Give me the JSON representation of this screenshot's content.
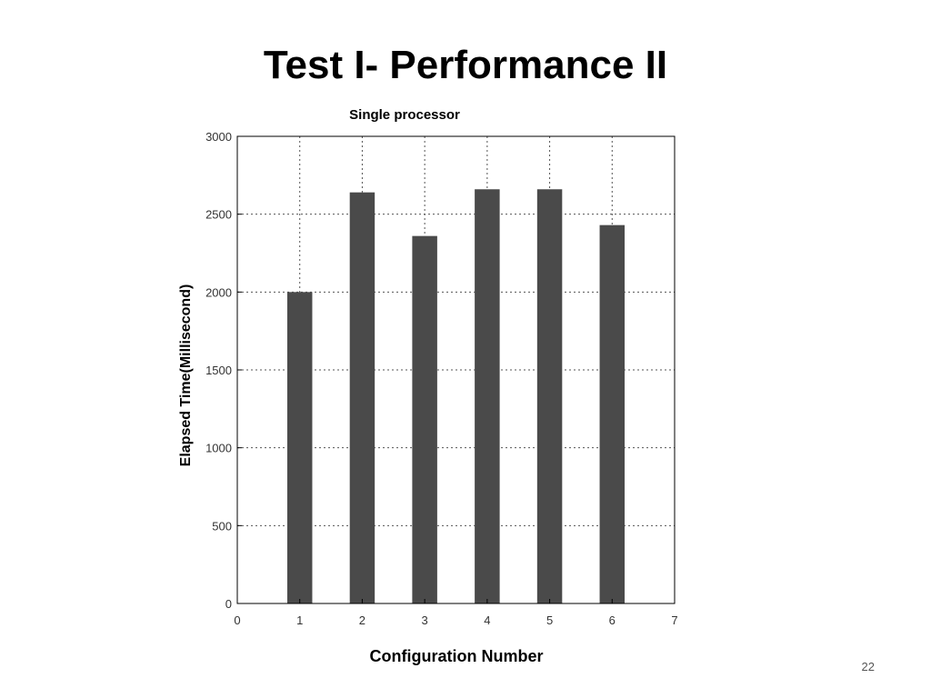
{
  "slide": {
    "title": "Test I- Performance II",
    "page_number": "22"
  },
  "colors": {
    "bar": "#4a4a4a",
    "grid": "#555555",
    "axis": "#000000"
  },
  "chart_data": {
    "type": "bar",
    "title": "Single processor",
    "xlabel": "Configuration Number",
    "ylabel": "Elapsed Time(Millisecond)",
    "categories": [
      "1",
      "2",
      "3",
      "4",
      "5",
      "6"
    ],
    "x": [
      1,
      2,
      3,
      4,
      5,
      6
    ],
    "values": [
      2000,
      2640,
      2360,
      2660,
      2660,
      2430
    ],
    "xlim": [
      0,
      7
    ],
    "ylim": [
      0,
      3000
    ],
    "xticks": [
      "0",
      "1",
      "2",
      "3",
      "4",
      "5",
      "6",
      "7"
    ],
    "yticks": [
      "0",
      "500",
      "1000",
      "1500",
      "2000",
      "2500",
      "3000"
    ],
    "grid": true,
    "legend": "none"
  }
}
